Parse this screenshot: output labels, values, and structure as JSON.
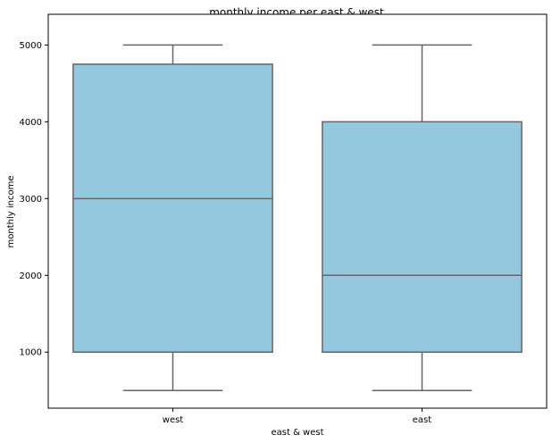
{
  "chart_data": {
    "type": "box",
    "title": "monthly income per east & west",
    "xlabel": "east & west",
    "ylabel": "monthly income",
    "ylim": [
      270,
      5400
    ],
    "yticks": [
      1000,
      2000,
      3000,
      4000,
      5000
    ],
    "grid": false,
    "legend": "none",
    "categories": [
      "west",
      "east"
    ],
    "boxes": [
      {
        "category": "west",
        "whisker_low": 500,
        "q1": 1000,
        "median": 3000,
        "q3": 4750,
        "whisker_high": 5000
      },
      {
        "category": "east",
        "whisker_low": 500,
        "q1": 1000,
        "median": 2000,
        "q3": 4000,
        "whisker_high": 5000
      }
    ],
    "colors": {
      "box_fill": "#93c8de",
      "line": "#666666",
      "axis": "#000000"
    }
  }
}
